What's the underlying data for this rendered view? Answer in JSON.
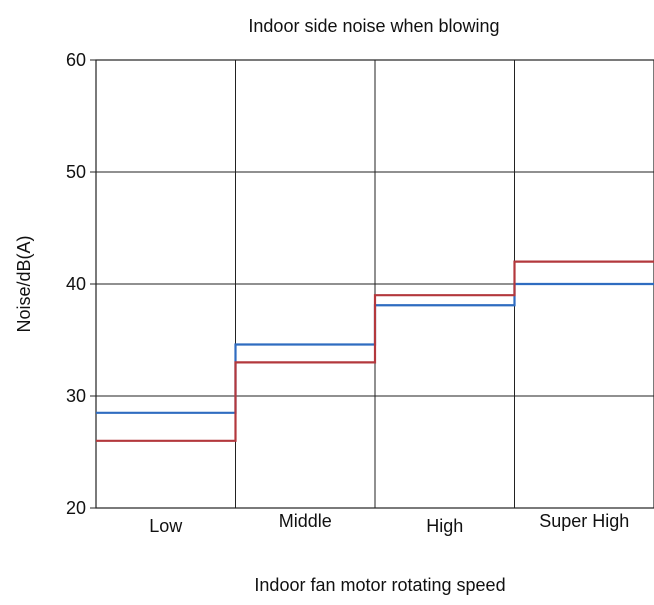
{
  "chart_data": {
    "type": "line",
    "title": "Indoor side noise when blowing",
    "xlabel": "Indoor fan motor rotating speed",
    "ylabel": "Noise/dB(A)",
    "categories": [
      "Low",
      "Middle",
      "High",
      "Super High"
    ],
    "ylim": [
      20,
      60
    ],
    "yticks": [
      20,
      30,
      40,
      50,
      60
    ],
    "grid": true,
    "step": true,
    "series": [
      {
        "values": [
          28.5,
          34.6,
          38.1,
          40.0
        ],
        "color": "#2f6cc0"
      },
      {
        "values": [
          26.0,
          33.0,
          39.0,
          42.0
        ],
        "color": "#b3383d"
      }
    ]
  }
}
